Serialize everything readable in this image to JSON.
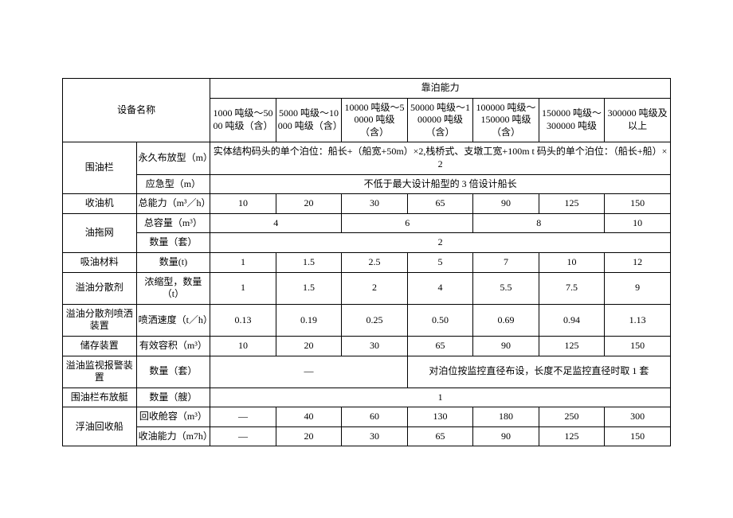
{
  "header": {
    "equip_name": "设备名称",
    "capacity": "靠泊能力",
    "cols": [
      "1000 吨级～5000 吨级（含）",
      "5000 吨级～10000 吨级（含）",
      "10000 吨级～50000 吨级（含）",
      "50000 吨级～100000 吨级（含）",
      "100000 吨级～150000 吨级（含）",
      "150000 吨级～300000 吨级",
      "300000 吨级及以上"
    ]
  },
  "rows": {
    "boom": {
      "name": "围油栏",
      "perm_spec": "永久布放型（m）",
      "perm_note": "实体结构码头的单个泊位：船长+（船宽+50m）×2,栈桥式、支墩工宽+100m t 码头的单个泊位：（船长+船）×2",
      "emg_spec": "应急型（m）",
      "emg_note": "不低于最大设计船型的 3 倍设计船长"
    },
    "skimmer": {
      "name": "收油机",
      "spec": "总能力（m³／h）",
      "v": [
        "10",
        "20",
        "30",
        "65",
        "90",
        "125",
        "150"
      ]
    },
    "trawl": {
      "name": "油拖网",
      "cap_spec": "总容量（m³）",
      "cap_v": [
        "4",
        "6",
        "8",
        "10"
      ],
      "qty_spec": "数量（套）",
      "qty_v": "2"
    },
    "absorb": {
      "name": "吸油材料",
      "spec": "数量(t)",
      "v": [
        "1",
        "1.5",
        "2.5",
        "5",
        "7",
        "10",
        "12"
      ]
    },
    "disp": {
      "name": "溢油分散剂",
      "spec": "浓缩型，数量（t）",
      "v": [
        "1",
        "1.5",
        "2",
        "4",
        "5.5",
        "7.5",
        "9"
      ]
    },
    "spray": {
      "name": "溢油分散剂喷洒装置",
      "spec": "喷洒速度（t／h）",
      "v": [
        "0.13",
        "0.19",
        "0.25",
        "0.50",
        "0.69",
        "0.94",
        "1.13"
      ]
    },
    "storage": {
      "name": "储存装置",
      "spec": "有效容积（m³）",
      "v": [
        "10",
        "20",
        "30",
        "65",
        "90",
        "125",
        "150"
      ]
    },
    "alarm": {
      "name": "溢油监视报警装置",
      "spec": "数量（套）",
      "left": "—",
      "right": "对泊位按监控直径布设，长度不足监控直径时取 1 套"
    },
    "deploy": {
      "name": "围油栏布放艇",
      "spec": "数量（艘）",
      "v": "1"
    },
    "recover": {
      "name": "浮油回收船",
      "tank_spec": "回收舱容（m³）",
      "tank_v": [
        "—",
        "40",
        "60",
        "130",
        "180",
        "250",
        "300"
      ],
      "rate_spec": "收油能力（m7h）",
      "rate_v": [
        "—",
        "20",
        "30",
        "65",
        "90",
        "125",
        "150"
      ]
    }
  }
}
